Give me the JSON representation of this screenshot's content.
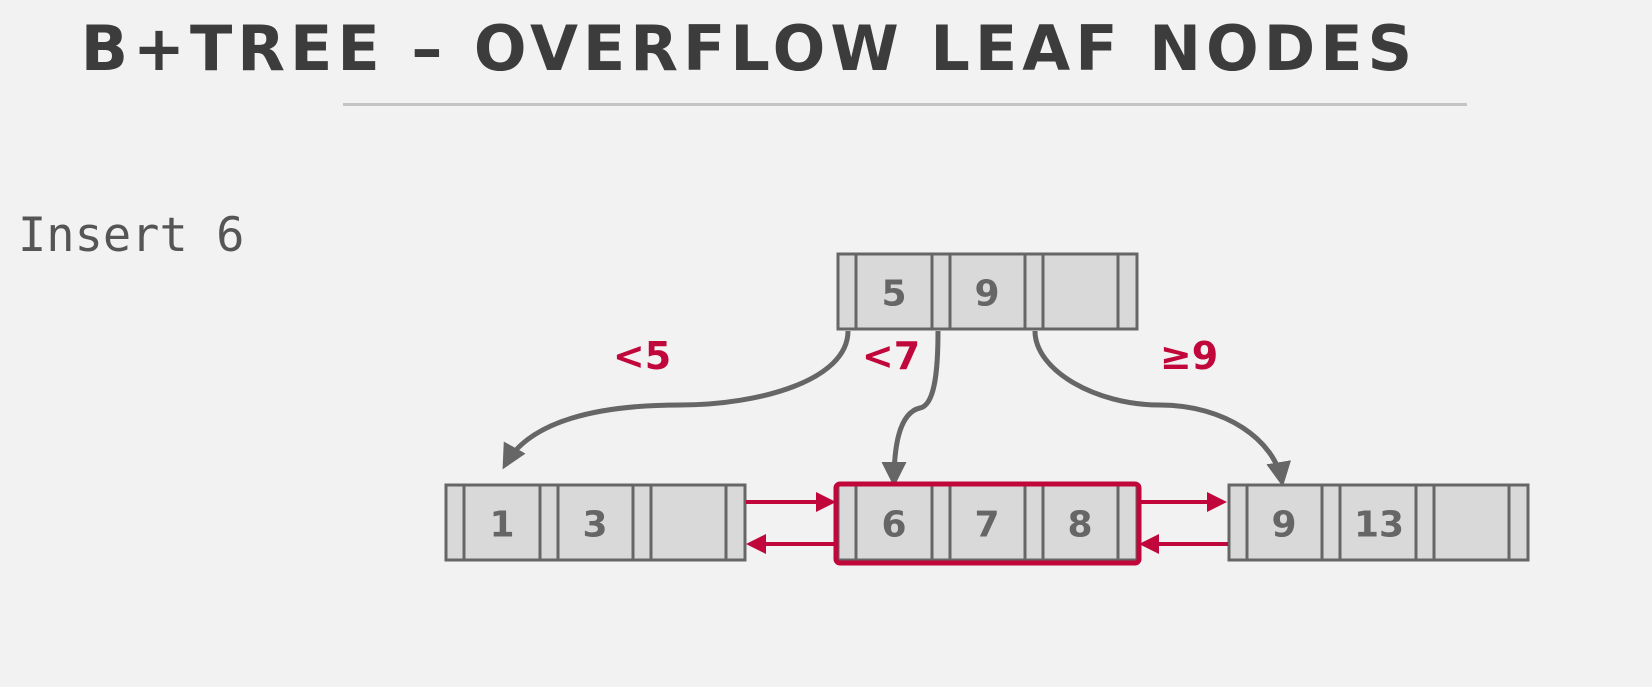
{
  "slide": {
    "title": "B+TREE – OVERFLOW LEAF NODES",
    "subtitle": "Insert 6"
  },
  "colors": {
    "background": "#f2f2f2",
    "node_fill": "#d9d9d9",
    "node_stroke": "#666666",
    "highlight": "#c0063a",
    "title": "#3c3c3c"
  },
  "diagram": {
    "root": {
      "keys": [
        "5",
        "9",
        ""
      ]
    },
    "leaves": [
      {
        "id": "leaf-left",
        "keys": [
          "1",
          "3",
          ""
        ],
        "highlighted": false
      },
      {
        "id": "leaf-middle",
        "keys": [
          "6",
          "7",
          "8"
        ],
        "highlighted": true
      },
      {
        "id": "leaf-right",
        "keys": [
          "9",
          "13",
          ""
        ],
        "highlighted": false
      }
    ],
    "edge_labels": [
      "<5",
      "<7",
      "≥9"
    ]
  }
}
